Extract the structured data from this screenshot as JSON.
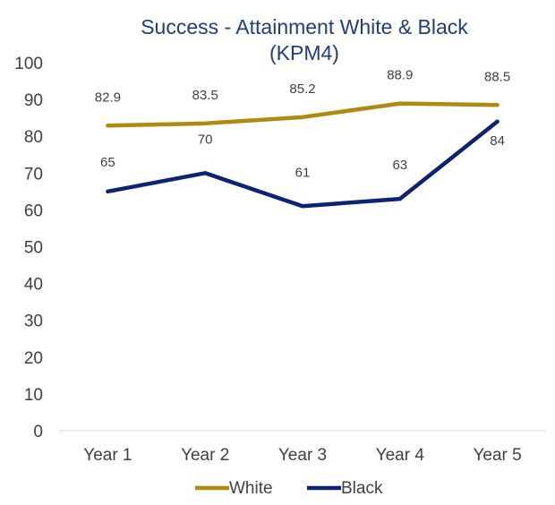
{
  "chart_data": {
    "type": "line",
    "title": "Success - Attainment White & Black",
    "subtitle": "(KPM4)",
    "categories": [
      "Year 1",
      "Year 2",
      "Year 3",
      "Year 4",
      "Year 5"
    ],
    "series": [
      {
        "name": "White",
        "color": "#b08a10",
        "values": [
          82.9,
          83.5,
          85.2,
          88.9,
          88.5
        ]
      },
      {
        "name": "Black",
        "color": "#0c2273",
        "values": [
          65,
          70,
          61,
          63,
          84
        ]
      }
    ],
    "xlabel": "",
    "ylabel": "",
    "ylim": [
      0,
      100
    ],
    "yticks": [
      0,
      10,
      20,
      30,
      40,
      50,
      60,
      70,
      80,
      90,
      100
    ],
    "grid": false,
    "legend": "bottom"
  }
}
